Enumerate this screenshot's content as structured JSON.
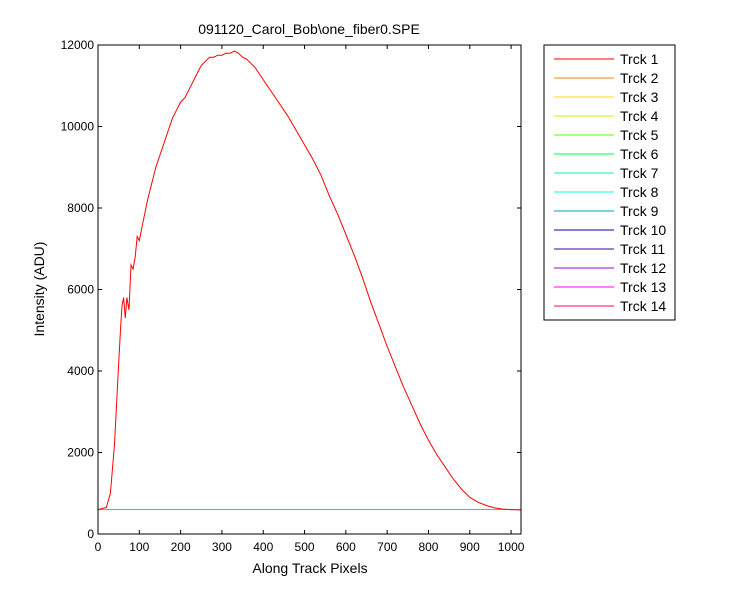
{
  "chart_data": {
    "type": "line",
    "title": "091120_Carol_Bob\\one_fiber0.SPE",
    "xlabel": "Along Track Pixels",
    "ylabel": "Intensity (ADU)",
    "xlim": [
      0,
      1024
    ],
    "ylim": [
      0,
      12000
    ],
    "xticks": [
      0,
      100,
      200,
      300,
      400,
      500,
      600,
      700,
      800,
      900,
      1000
    ],
    "yticks": [
      0,
      2000,
      4000,
      6000,
      8000,
      10000,
      12000
    ],
    "grid": false,
    "legend_position": "outside-right",
    "main_curve": {
      "x": [
        0,
        20,
        30,
        40,
        45,
        50,
        55,
        58,
        62,
        66,
        70,
        75,
        80,
        85,
        90,
        95,
        100,
        110,
        120,
        130,
        140,
        150,
        160,
        170,
        180,
        190,
        200,
        210,
        220,
        230,
        240,
        250,
        260,
        270,
        280,
        290,
        300,
        310,
        320,
        330,
        340,
        350,
        360,
        370,
        380,
        390,
        400,
        420,
        440,
        460,
        480,
        500,
        520,
        540,
        560,
        580,
        600,
        620,
        640,
        660,
        680,
        700,
        720,
        740,
        760,
        780,
        800,
        820,
        840,
        860,
        880,
        900,
        920,
        940,
        960,
        980,
        1000,
        1024
      ],
      "y": [
        600,
        650,
        1000,
        2200,
        3200,
        4200,
        5100,
        5600,
        5800,
        5300,
        5800,
        5500,
        6600,
        6500,
        6800,
        7300,
        7200,
        7700,
        8200,
        8600,
        9000,
        9300,
        9600,
        9900,
        10200,
        10400,
        10600,
        10700,
        10900,
        11100,
        11300,
        11500,
        11600,
        11700,
        11700,
        11750,
        11750,
        11800,
        11800,
        11850,
        11800,
        11700,
        11650,
        11550,
        11450,
        11300,
        11150,
        10850,
        10550,
        10250,
        9900,
        9550,
        9200,
        8800,
        8300,
        7850,
        7350,
        6850,
        6300,
        5700,
        5150,
        4600,
        4100,
        3600,
        3150,
        2700,
        2300,
        1950,
        1650,
        1350,
        1100,
        900,
        780,
        700,
        640,
        610,
        600,
        590
      ]
    },
    "baseline_value": 600,
    "series": [
      {
        "name": "Trck 1",
        "color": "#ff0000"
      },
      {
        "name": "Trck 2",
        "color": "#ff7f00"
      },
      {
        "name": "Trck 3",
        "color": "#ffdf00"
      },
      {
        "name": "Trck 4",
        "color": "#bfff00"
      },
      {
        "name": "Trck 5",
        "color": "#5fff00"
      },
      {
        "name": "Trck 6",
        "color": "#00ff3f"
      },
      {
        "name": "Trck 7",
        "color": "#00ff9f"
      },
      {
        "name": "Trck 8",
        "color": "#00ffdf"
      },
      {
        "name": "Trck 9",
        "color": "#009fbf"
      },
      {
        "name": "Trck 10",
        "color": "#0000bf"
      },
      {
        "name": "Trck 11",
        "color": "#3f009f"
      },
      {
        "name": "Trck 12",
        "color": "#9f00df"
      },
      {
        "name": "Trck 13",
        "color": "#ff00ff"
      },
      {
        "name": "Trck 14",
        "color": "#ff007f"
      }
    ]
  }
}
